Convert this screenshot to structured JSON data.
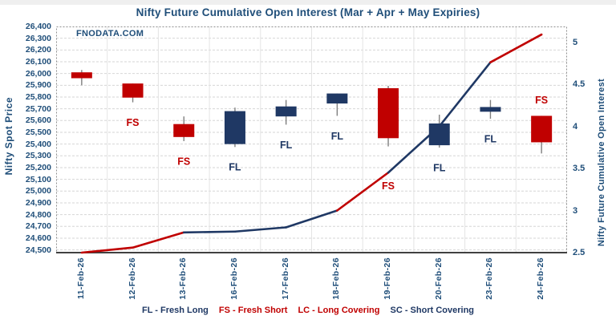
{
  "title": "Nifty Future Cumulative Open Interest (Mar + Apr + May Expiries)",
  "watermark": "FNODATA.COM",
  "left_axis": {
    "title": "Nifty Spot Price",
    "ticks": [
      "26,400",
      "26,300",
      "26,200",
      "26,100",
      "26,000",
      "25,900",
      "25,800",
      "25,700",
      "25,600",
      "25,500",
      "25,400",
      "25,300",
      "25,200",
      "25,100",
      "25,000",
      "24,900",
      "24,800",
      "24,700",
      "24,600",
      "24,500"
    ]
  },
  "right_axis": {
    "title": "Nifty Future Cumulative Open Interest",
    "ticks": [
      "5",
      "4.5",
      "4",
      "3.5",
      "3",
      "2.5"
    ]
  },
  "legend": [
    {
      "text": "FL - Fresh Long",
      "color": "#1F3864"
    },
    {
      "text": "FS - Fresh Short",
      "color": "#C00000"
    },
    {
      "text": "LC - Long Covering",
      "color": "#C00000"
    },
    {
      "text": "SC - Short Covering",
      "color": "#1F3864"
    }
  ],
  "colors": {
    "bearish": "#C00000",
    "bullish": "#1F3864",
    "axis_text": "#1F4E79",
    "wick": "#7F7F7F",
    "grid": "#D6D6D6"
  },
  "chart_data": {
    "type": "candlestick+line",
    "title": "Nifty Future Cumulative Open Interest (Mar + Apr + May Expiries)",
    "categories": [
      "11-Feb-26",
      "12-Feb-26",
      "13-Feb-26",
      "16-Feb-26",
      "17-Feb-26",
      "18-Feb-26",
      "19-Feb-26",
      "20-Feb-26",
      "23-Feb-26",
      "24-Feb-26"
    ],
    "left_axis_range": [
      24500,
      26400
    ],
    "right_axis_range": [
      2.5,
      5
    ],
    "grid": true,
    "series": [
      {
        "name": "Nifty Spot Price",
        "type": "candlestick",
        "candles": [
          {
            "date": "11-Feb-26",
            "open": 26010,
            "high": 26030,
            "low": 25900,
            "close": 25960,
            "direction": "down",
            "label": "",
            "label_pos": "none"
          },
          {
            "date": "12-Feb-26",
            "open": 25915,
            "high": 25915,
            "low": 25755,
            "close": 25795,
            "direction": "down",
            "label": "FS",
            "label_pos": "below"
          },
          {
            "date": "13-Feb-26",
            "open": 25570,
            "high": 25635,
            "low": 25425,
            "close": 25460,
            "direction": "down",
            "label": "FS",
            "label_pos": "below"
          },
          {
            "date": "16-Feb-26",
            "open": 25400,
            "high": 25710,
            "low": 25375,
            "close": 25680,
            "direction": "up",
            "label": "FL",
            "label_pos": "below"
          },
          {
            "date": "17-Feb-26",
            "open": 25635,
            "high": 25775,
            "low": 25565,
            "close": 25720,
            "direction": "up",
            "label": "FL",
            "label_pos": "below"
          },
          {
            "date": "18-Feb-26",
            "open": 25745,
            "high": 25830,
            "low": 25640,
            "close": 25830,
            "direction": "up",
            "label": "FL",
            "label_pos": "below"
          },
          {
            "date": "19-Feb-26",
            "open": 25875,
            "high": 25895,
            "low": 25380,
            "close": 25450,
            "direction": "down",
            "label": "FS",
            "label_pos": "below",
            "label_dy": 49
          },
          {
            "date": "20-Feb-26",
            "open": 25390,
            "high": 25650,
            "low": 25370,
            "close": 25575,
            "direction": "up",
            "label": "FL",
            "label_pos": "below"
          },
          {
            "date": "23-Feb-26",
            "open": 25675,
            "high": 25775,
            "low": 25615,
            "close": 25715,
            "direction": "up",
            "label": "FL",
            "label_pos": "below"
          },
          {
            "date": "24-Feb-26",
            "open": 25640,
            "high": 25640,
            "low": 25320,
            "close": 25415,
            "direction": "down",
            "label": "FS",
            "label_pos": "above"
          }
        ]
      },
      {
        "name": "Nifty Future Cumulative Open Interest",
        "type": "line",
        "values": [
          2.5,
          2.56,
          2.74,
          2.75,
          2.8,
          3.0,
          3.45,
          4.0,
          4.76,
          5.09
        ],
        "segment_colors": [
          "#C00000",
          "#C00000",
          "#1F3864",
          "#1F3864",
          "#1F3864",
          "#C00000",
          "#1F3864",
          "#1F3864",
          "#C00000"
        ]
      }
    ]
  }
}
